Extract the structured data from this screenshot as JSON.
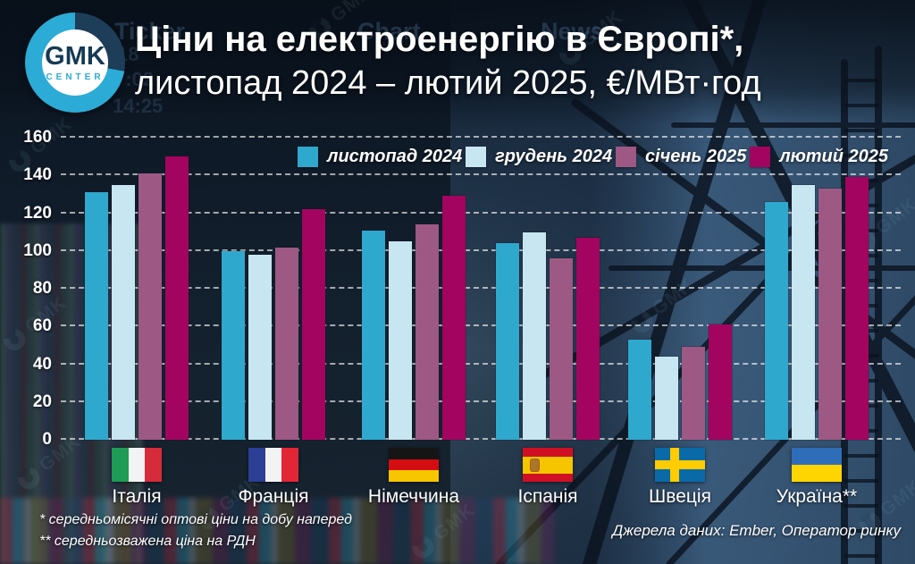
{
  "brand": {
    "logo_text": "GMK",
    "logo_subtext": "CENTER"
  },
  "header": {
    "title_line1": "Ціни на електроенергію в Європі*,",
    "title_line2": "листопад 2024 – лютий 2025, €/МВт·год"
  },
  "background": {
    "ticker_tabs": [
      "Ticker",
      "Chart",
      "News"
    ],
    "faint_numbers": [
      "18",
      "7:02",
      "14:25"
    ]
  },
  "chart_data": {
    "type": "bar",
    "title": "Ціни на електроенергію в Європі, листопад 2024 – лютий 2025, €/МВт·год",
    "categories": [
      "Італія",
      "Франція",
      "Німеччина",
      "Іспанія",
      "Швеція",
      "Україна**"
    ],
    "keys": [
      "italy",
      "france",
      "germany",
      "spain",
      "sweden",
      "ukraine"
    ],
    "series": [
      {
        "name": "листопад 2024",
        "color": "#2fa8ce",
        "values": [
          131,
          100,
          111,
          104,
          53,
          126
        ]
      },
      {
        "name": "грудень 2024",
        "color": "#c7e6f2",
        "values": [
          135,
          98,
          105,
          110,
          44,
          135
        ]
      },
      {
        "name": "січень 2025",
        "color": "#9d5884",
        "values": [
          141,
          102,
          114,
          96,
          49,
          133
        ]
      },
      {
        "name": "лютий 2025",
        "color": "#a3045f",
        "values": [
          150,
          122,
          129,
          107,
          61,
          139
        ]
      }
    ],
    "ylim": [
      0,
      160
    ],
    "yticks": [
      0,
      20,
      40,
      60,
      80,
      100,
      120,
      140,
      160
    ],
    "grid": true,
    "legend_position": "top"
  },
  "footnotes": {
    "line1": "*  середньомісячні оптові ціни на добу наперед",
    "line2": "** середньозважена ціна  на РДН",
    "source": "Джерела даних: Ember, Оператор ринку"
  }
}
